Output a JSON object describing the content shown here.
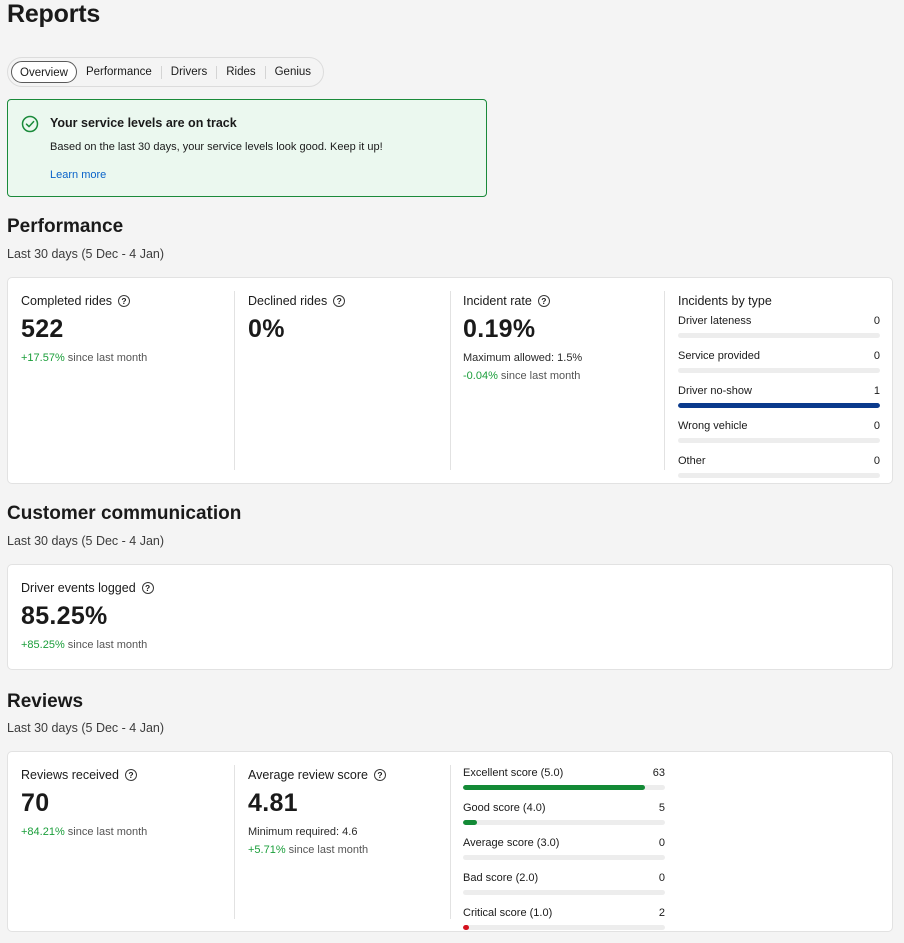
{
  "page": {
    "title": "Reports"
  },
  "tabs": [
    {
      "label": "Overview",
      "active": true
    },
    {
      "label": "Performance"
    },
    {
      "label": "Drivers"
    },
    {
      "label": "Rides"
    },
    {
      "label": "Genius"
    }
  ],
  "alert": {
    "title": "Your service levels are on track",
    "body": "Based on the last 30 days, your service levels look good. Keep it up!",
    "link": "Learn more",
    "color": "#1a8a3a"
  },
  "performance": {
    "title": "Performance",
    "subtitle": "Last 30 days (5 Dec - 4 Jan)",
    "completed": {
      "label": "Completed rides",
      "value": "522",
      "change": "+17.57%",
      "change_suffix": " since last month"
    },
    "declined": {
      "label": "Declined rides",
      "value": "0%"
    },
    "incident": {
      "label": "Incident rate",
      "value": "0.19%",
      "note": "Maximum allowed: 1.5%",
      "change": "-0.04%",
      "change_suffix": " since last month"
    },
    "incidents_by_type": {
      "title": "Incidents by type",
      "max": 1,
      "color": "#0a3a8c",
      "items": [
        {
          "label": "Driver lateness",
          "value": 0
        },
        {
          "label": "Service provided",
          "value": 0
        },
        {
          "label": "Driver no-show",
          "value": 1
        },
        {
          "label": "Wrong vehicle",
          "value": 0
        },
        {
          "label": "Other",
          "value": 0
        }
      ]
    }
  },
  "communication": {
    "title": "Customer communication",
    "subtitle": "Last 30 days (5 Dec - 4 Jan)",
    "driver_events": {
      "label": "Driver events logged",
      "value": "85.25%",
      "change": "+85.25%",
      "change_suffix": " since last month"
    }
  },
  "reviews": {
    "title": "Reviews",
    "subtitle": "Last 30 days (5 Dec - 4 Jan)",
    "received": {
      "label": "Reviews received",
      "value": "70",
      "change": "+84.21%",
      "change_suffix": " since last month"
    },
    "average": {
      "label": "Average review score",
      "value": "4.81",
      "note": "Minimum required: 4.6",
      "change": "+5.71%",
      "change_suffix": " since last month"
    },
    "scores": {
      "max": 70,
      "items": [
        {
          "label": "Excellent score (5.0)",
          "value": 63,
          "color": "#138a36"
        },
        {
          "label": "Good score (4.0)",
          "value": 5,
          "color": "#138a36"
        },
        {
          "label": "Average score (3.0)",
          "value": 0,
          "color": "#138a36"
        },
        {
          "label": "Bad score (2.0)",
          "value": 0,
          "color": "#d4111e"
        },
        {
          "label": "Critical score (1.0)",
          "value": 2,
          "color": "#d4111e"
        }
      ]
    }
  }
}
